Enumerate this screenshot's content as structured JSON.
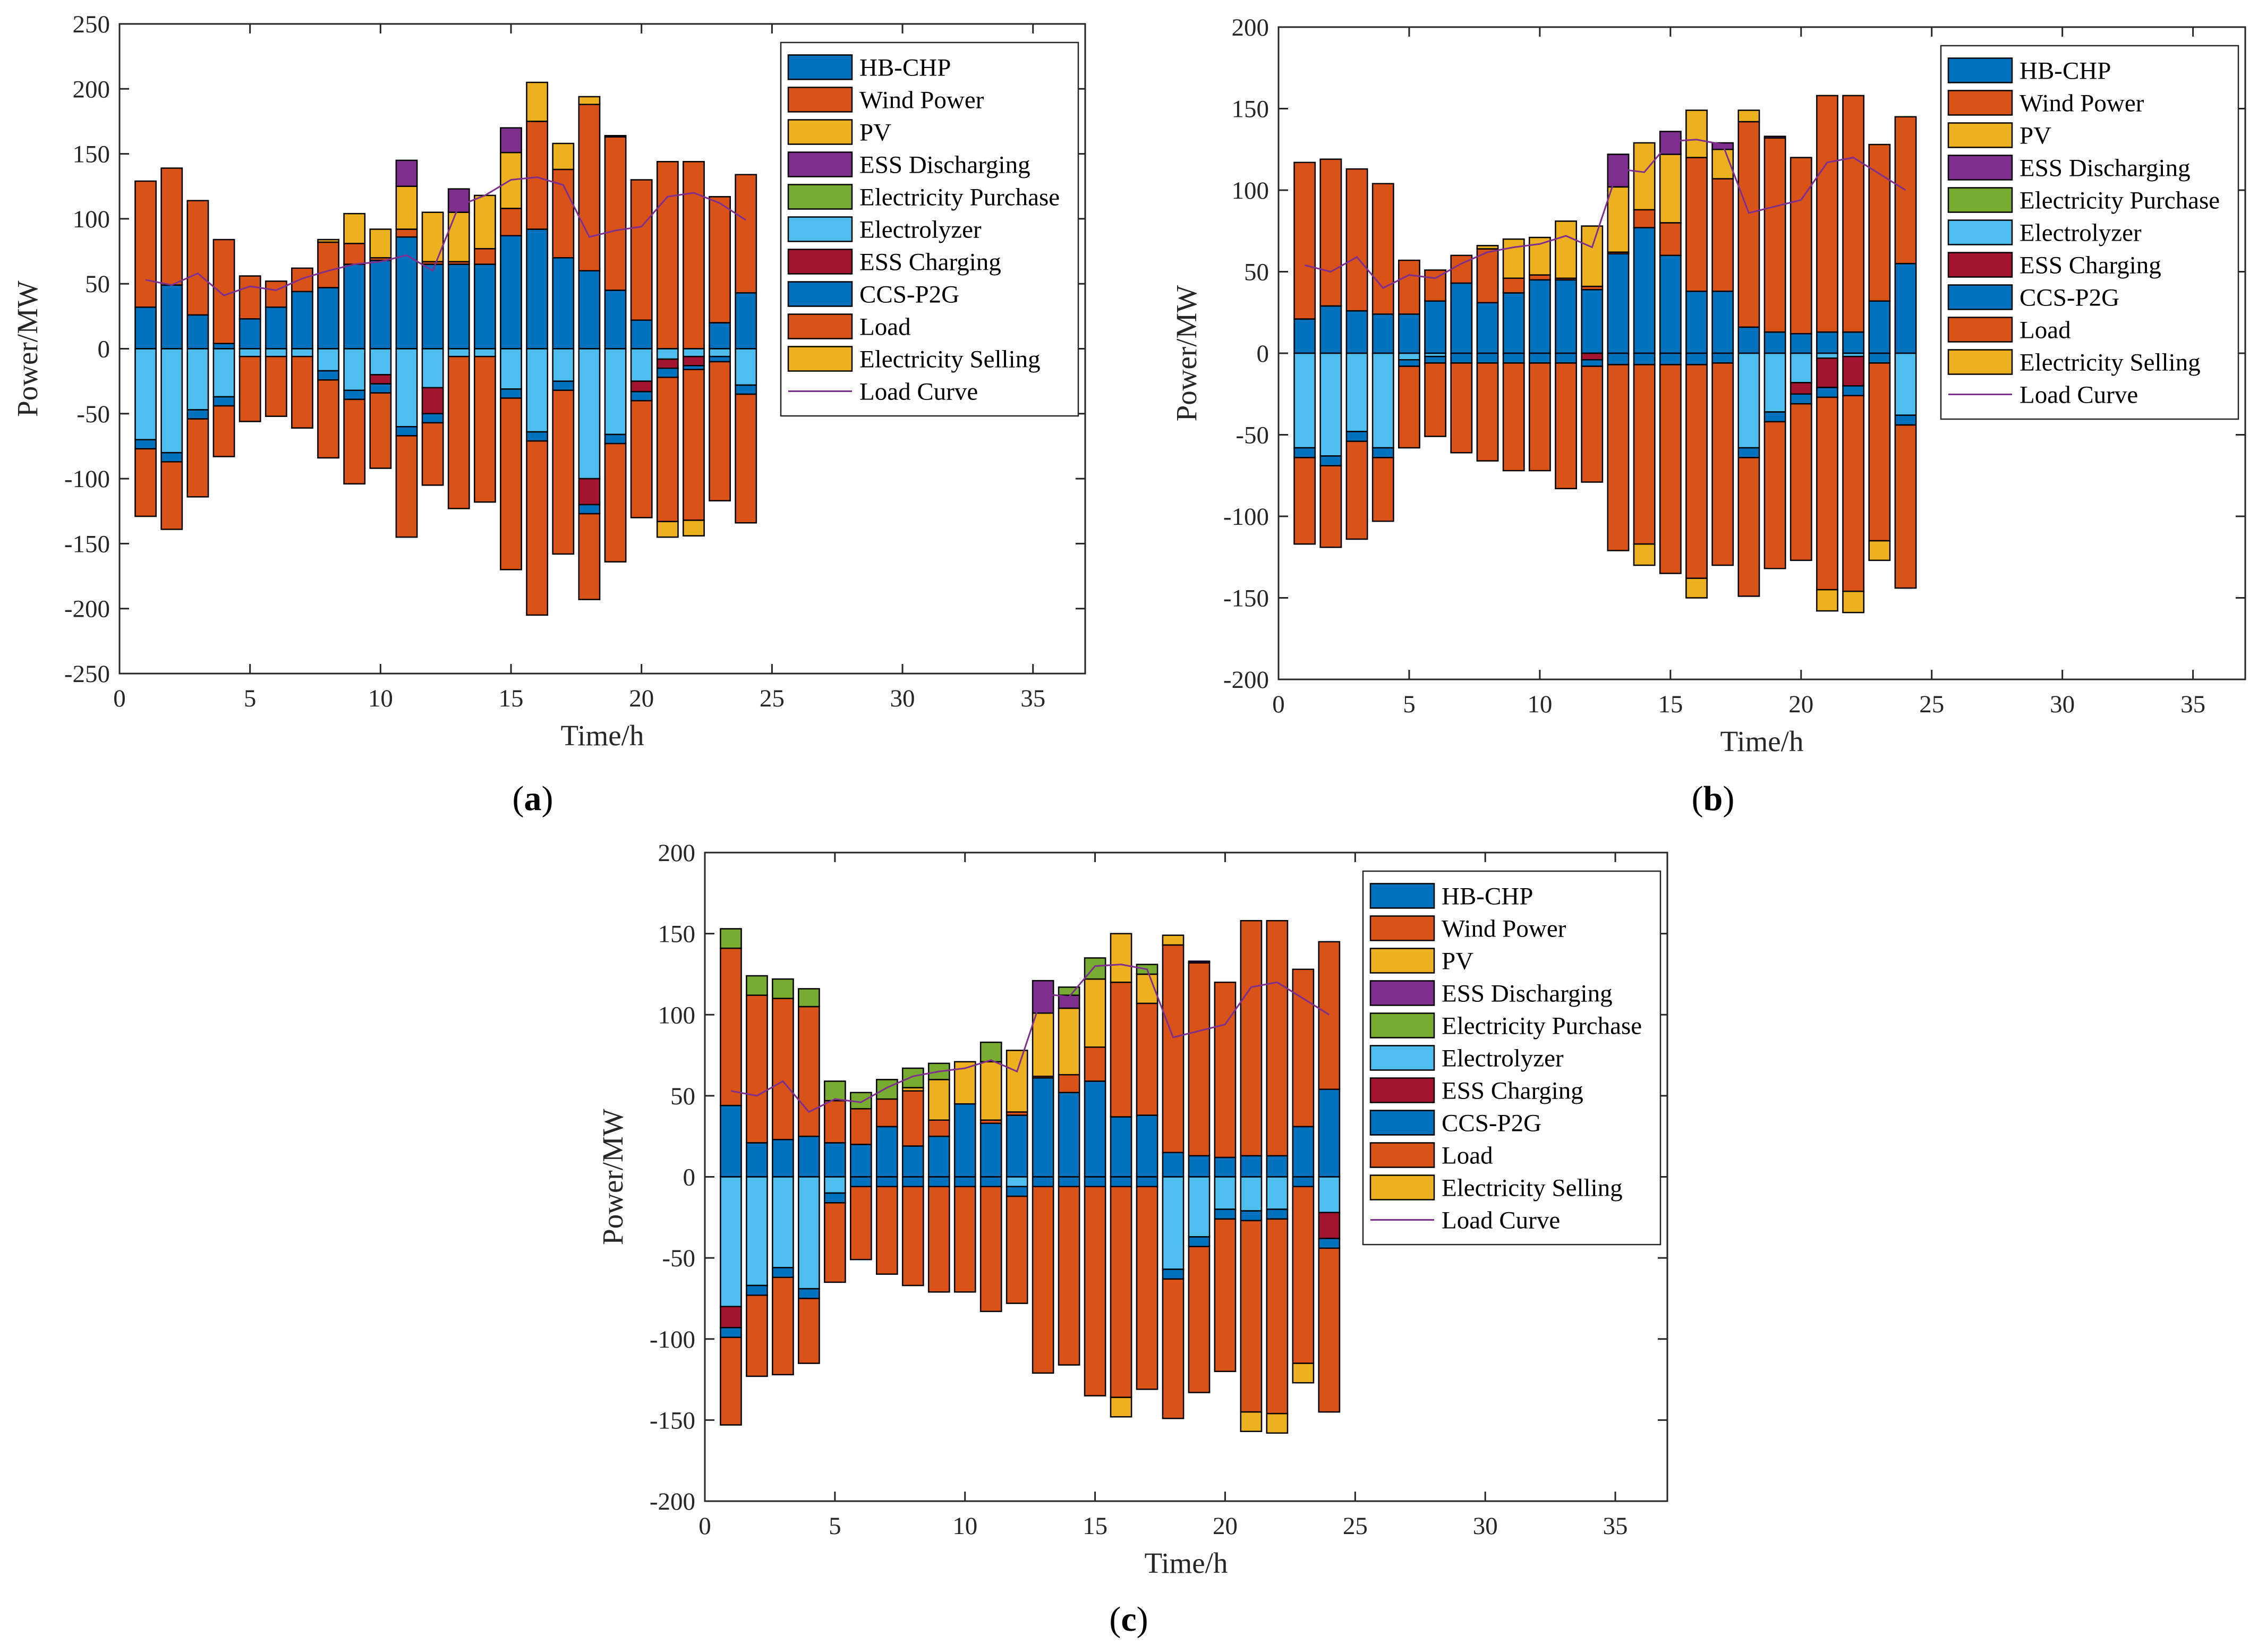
{
  "figure": {
    "panel_labels": [
      {
        "open": "(",
        "letter": "a",
        "close": ")"
      },
      {
        "open": "(",
        "letter": "b",
        "close": ")"
      },
      {
        "open": "(",
        "letter": "c",
        "close": ")"
      }
    ]
  },
  "chart_data": [
    {
      "type": "bar",
      "title": "",
      "xlabel": "Time/h",
      "ylabel": "Power/MW",
      "xlim": [
        0,
        37
      ],
      "ylim": [
        -250,
        250
      ],
      "xticks": [
        0,
        5,
        10,
        15,
        20,
        25,
        30,
        35
      ],
      "yticks": [
        -250,
        -200,
        -150,
        -100,
        -50,
        0,
        50,
        100,
        150,
        200,
        250
      ],
      "legend_position": "top-right",
      "legend": [
        "HB-CHP",
        "Wind Power",
        "PV",
        "ESS Discharging",
        "Electricity Purchase",
        "Electrolyzer",
        "ESS Charging",
        "CCS-P2G",
        "Load",
        "Electricity Selling",
        "Load Curve"
      ],
      "colors": {
        "HB-CHP": "#0072BD",
        "Wind Power": "#D95319",
        "PV": "#EDB120",
        "ESS Discharging": "#7E2F8E",
        "Electricity Purchase": "#77AC30",
        "Electrolyzer": "#4DBEEE",
        "ESS Charging": "#A2142F",
        "CCS-P2G": "#0072BD",
        "Load": "#D95319",
        "Electricity Selling": "#EDB120",
        "Load Curve": "#7E2F8E"
      },
      "x": [
        1,
        2,
        3,
        4,
        5,
        6,
        7,
        8,
        9,
        10,
        11,
        12,
        13,
        14,
        15,
        16,
        17,
        18,
        19,
        20,
        21,
        22,
        23,
        24
      ],
      "positive_series": [
        {
          "name": "HB-CHP",
          "values": [
            32,
            49,
            26,
            4,
            23,
            32,
            44,
            47,
            65,
            68,
            86,
            65,
            65,
            65,
            87,
            92,
            70,
            60,
            45,
            22,
            0,
            0,
            20,
            43
          ]
        },
        {
          "name": "Wind Power",
          "values": [
            97,
            90,
            88,
            80,
            33,
            20,
            18,
            35,
            16,
            2,
            6,
            2,
            2,
            12,
            21,
            83,
            68,
            128,
            118,
            108,
            144,
            144,
            97,
            91
          ]
        },
        {
          "name": "PV",
          "values": [
            0,
            0,
            0,
            0,
            0,
            0,
            0,
            2,
            23,
            22,
            33,
            38,
            38,
            41,
            43,
            30,
            20,
            6,
            0,
            0,
            0,
            0,
            0,
            0
          ]
        },
        {
          "name": "ESS Discharging",
          "values": [
            0,
            0,
            0,
            0,
            0,
            0,
            0,
            0,
            0,
            0,
            20,
            0,
            18,
            0,
            19,
            0,
            0,
            0,
            1,
            0,
            0,
            0,
            0,
            0
          ]
        },
        {
          "name": "Electricity Purchase",
          "values": [
            0,
            0,
            0,
            0,
            0,
            0,
            0,
            0,
            0,
            0,
            0,
            0,
            0,
            0,
            0,
            0,
            0,
            0,
            0,
            0,
            0,
            0,
            0,
            0
          ]
        }
      ],
      "negative_series": [
        {
          "name": "Electrolyzer",
          "values": [
            70,
            80,
            47,
            37,
            6,
            6,
            6,
            17,
            32,
            20,
            60,
            30,
            6,
            6,
            31,
            64,
            25,
            100,
            66,
            25,
            8,
            6,
            6,
            28
          ]
        },
        {
          "name": "ESS Charging",
          "values": [
            0,
            0,
            0,
            0,
            0,
            0,
            0,
            0,
            0,
            7,
            0,
            20,
            0,
            0,
            0,
            0,
            0,
            20,
            0,
            8,
            7,
            7,
            0,
            0
          ]
        },
        {
          "name": "CCS-P2G",
          "values": [
            7,
            7,
            7,
            7,
            0,
            0,
            0,
            7,
            7,
            7,
            7,
            7,
            0,
            0,
            7,
            7,
            7,
            7,
            7,
            7,
            7,
            3,
            4,
            7
          ]
        },
        {
          "name": "Load",
          "values": [
            52,
            52,
            60,
            39,
            50,
            46,
            55,
            60,
            65,
            58,
            78,
            48,
            117,
            112,
            132,
            134,
            126,
            66,
            91,
            90,
            111,
            116,
            107,
            99
          ]
        },
        {
          "name": "Electricity Selling",
          "values": [
            0,
            0,
            0,
            0,
            0,
            0,
            0,
            0,
            0,
            0,
            0,
            0,
            0,
            0,
            0,
            0,
            0,
            0,
            0,
            0,
            12,
            12,
            0,
            0
          ]
        }
      ],
      "load_curve": [
        53,
        49,
        58,
        41,
        48,
        45,
        54,
        60,
        65,
        67,
        72,
        60,
        110,
        118,
        130,
        132,
        126,
        86,
        91,
        94,
        117,
        120,
        112,
        99
      ]
    },
    {
      "type": "bar",
      "title": "",
      "xlabel": "Time/h",
      "ylabel": "Power/MW",
      "xlim": [
        0,
        37
      ],
      "ylim": [
        -200,
        200
      ],
      "xticks": [
        0,
        5,
        10,
        15,
        20,
        25,
        30,
        35
      ],
      "yticks": [
        -200,
        -150,
        -100,
        -50,
        0,
        50,
        100,
        150,
        200
      ],
      "legend_position": "top-right",
      "legend": [
        "HB-CHP",
        "Wind Power",
        "PV",
        "ESS Discharging",
        "Electricity Purchase",
        "Electrolyzer",
        "ESS Charging",
        "CCS-P2G",
        "Load",
        "Electricity Selling",
        "Load Curve"
      ],
      "colors": {
        "HB-CHP": "#0072BD",
        "Wind Power": "#D95319",
        "PV": "#EDB120",
        "ESS Discharging": "#7E2F8E",
        "Electricity Purchase": "#77AC30",
        "Electrolyzer": "#4DBEEE",
        "ESS Charging": "#A2142F",
        "CCS-P2G": "#0072BD",
        "Load": "#D95319",
        "Electricity Selling": "#EDB120",
        "Load Curve": "#7E2F8E"
      },
      "x": [
        1,
        2,
        3,
        4,
        5,
        6,
        7,
        8,
        9,
        10,
        11,
        12,
        13,
        14,
        15,
        16,
        17,
        18,
        19,
        20,
        21,
        22,
        23,
        24
      ],
      "positive_series": [
        {
          "name": "HB-CHP",
          "values": [
            21,
            29,
            26,
            24,
            24,
            32,
            43,
            31,
            37,
            45,
            45,
            39,
            61,
            77,
            60,
            38,
            38,
            16,
            13,
            12,
            13,
            13,
            32,
            55
          ]
        },
        {
          "name": "Wind Power",
          "values": [
            96,
            90,
            87,
            80,
            33,
            19,
            17,
            33,
            9,
            3,
            1,
            2,
            1,
            11,
            20,
            82,
            69,
            126,
            119,
            108,
            145,
            145,
            96,
            90
          ]
        },
        {
          "name": "PV",
          "values": [
            0,
            0,
            0,
            0,
            0,
            0,
            0,
            2,
            24,
            23,
            35,
            37,
            40,
            41,
            42,
            29,
            18,
            7,
            0,
            0,
            0,
            0,
            0,
            0
          ]
        },
        {
          "name": "ESS Discharging",
          "values": [
            0,
            0,
            0,
            0,
            0,
            0,
            0,
            0,
            0,
            0,
            0,
            0,
            20,
            0,
            14,
            0,
            4,
            0,
            1,
            0,
            0,
            0,
            0,
            0
          ]
        },
        {
          "name": "Electricity Purchase",
          "values": [
            0,
            0,
            0,
            0,
            0,
            0,
            0,
            0,
            0,
            0,
            0,
            0,
            0,
            0,
            0,
            0,
            0,
            0,
            0,
            0,
            0,
            0,
            0,
            0
          ]
        }
      ],
      "negative_series": [
        {
          "name": "Electrolyzer",
          "values": [
            58,
            63,
            48,
            58,
            4,
            2,
            0,
            0,
            0,
            0,
            0,
            0,
            0,
            0,
            0,
            0,
            0,
            58,
            36,
            18,
            3,
            2,
            0,
            38
          ]
        },
        {
          "name": "ESS Charging",
          "values": [
            0,
            0,
            0,
            0,
            0,
            0,
            0,
            0,
            0,
            0,
            0,
            4,
            0,
            0,
            0,
            0,
            0,
            0,
            0,
            7,
            18,
            18,
            0,
            0
          ]
        },
        {
          "name": "CCS-P2G",
          "values": [
            6,
            6,
            6,
            6,
            4,
            4,
            6,
            6,
            6,
            6,
            6,
            4,
            7,
            7,
            7,
            7,
            6,
            6,
            6,
            6,
            6,
            6,
            6,
            6
          ]
        },
        {
          "name": "Load",
          "values": [
            53,
            50,
            60,
            39,
            50,
            45,
            55,
            60,
            66,
            66,
            77,
            71,
            114,
            110,
            128,
            131,
            124,
            85,
            90,
            96,
            118,
            120,
            109,
            100
          ]
        },
        {
          "name": "Electricity Selling",
          "values": [
            0,
            0,
            0,
            0,
            0,
            0,
            0,
            0,
            0,
            0,
            0,
            0,
            0,
            13,
            0,
            12,
            0,
            0,
            0,
            0,
            13,
            13,
            12,
            0
          ]
        }
      ],
      "load_curve": [
        54,
        50,
        59,
        40,
        48,
        46,
        55,
        62,
        65,
        67,
        72,
        65,
        113,
        111,
        130,
        131,
        128,
        86,
        90,
        94,
        117,
        120,
        110,
        100
      ]
    },
    {
      "type": "bar",
      "title": "",
      "xlabel": "Time/h",
      "ylabel": "Power/MW",
      "xlim": [
        0,
        37
      ],
      "ylim": [
        -200,
        200
      ],
      "xticks": [
        0,
        5,
        10,
        15,
        20,
        25,
        30,
        35
      ],
      "yticks": [
        -200,
        -150,
        -100,
        -50,
        0,
        50,
        100,
        150,
        200
      ],
      "legend_position": "top-right",
      "legend": [
        "HB-CHP",
        "Wind Power",
        "PV",
        "ESS Discharging",
        "Electricity Purchase",
        "Electrolyzer",
        "ESS Charging",
        "CCS-P2G",
        "Load",
        "Electricity Selling",
        "Load Curve"
      ],
      "colors": {
        "HB-CHP": "#0072BD",
        "Wind Power": "#D95319",
        "PV": "#EDB120",
        "ESS Discharging": "#7E2F8E",
        "Electricity Purchase": "#77AC30",
        "Electrolyzer": "#4DBEEE",
        "ESS Charging": "#A2142F",
        "CCS-P2G": "#0072BD",
        "Load": "#D95319",
        "Electricity Selling": "#EDB120",
        "Load Curve": "#7E2F8E"
      },
      "x": [
        1,
        2,
        3,
        4,
        5,
        6,
        7,
        8,
        9,
        10,
        11,
        12,
        13,
        14,
        15,
        16,
        17,
        18,
        19,
        20,
        21,
        22,
        23,
        24
      ],
      "positive_series": [
        {
          "name": "HB-CHP",
          "values": [
            44,
            21,
            23,
            25,
            21,
            20,
            31,
            19,
            25,
            45,
            33,
            38,
            61,
            52,
            59,
            37,
            38,
            15,
            13,
            12,
            13,
            13,
            31,
            54
          ]
        },
        {
          "name": "Wind Power",
          "values": [
            97,
            91,
            87,
            80,
            26,
            22,
            17,
            34,
            10,
            0,
            2,
            2,
            1,
            11,
            21,
            83,
            69,
            128,
            119,
            108,
            145,
            145,
            97,
            91
          ]
        },
        {
          "name": "PV",
          "values": [
            0,
            0,
            0,
            0,
            0,
            0,
            0,
            2,
            25,
            26,
            36,
            38,
            39,
            41,
            42,
            30,
            18,
            6,
            0,
            0,
            0,
            0,
            0,
            0
          ]
        },
        {
          "name": "ESS Discharging",
          "values": [
            0,
            0,
            0,
            0,
            0,
            0,
            0,
            0,
            0,
            0,
            0,
            0,
            20,
            8,
            0,
            0,
            0,
            0,
            1,
            0,
            0,
            0,
            0,
            0
          ]
        },
        {
          "name": "Electricity Purchase",
          "values": [
            12,
            12,
            12,
            11,
            12,
            10,
            12,
            12,
            10,
            0,
            12,
            0,
            0,
            5,
            13,
            0,
            6,
            0,
            0,
            0,
            0,
            0,
            0,
            0
          ]
        }
      ],
      "negative_series": [
        {
          "name": "Electrolyzer",
          "values": [
            80,
            67,
            56,
            69,
            10,
            0,
            0,
            0,
            0,
            0,
            0,
            6,
            0,
            0,
            0,
            0,
            0,
            57,
            37,
            20,
            21,
            20,
            0,
            22
          ]
        },
        {
          "name": "ESS Charging",
          "values": [
            13,
            0,
            0,
            0,
            0,
            0,
            0,
            0,
            0,
            0,
            0,
            0,
            0,
            0,
            0,
            0,
            0,
            0,
            0,
            0,
            0,
            0,
            0,
            16
          ]
        },
        {
          "name": "CCS-P2G",
          "values": [
            6,
            6,
            6,
            6,
            6,
            6,
            6,
            6,
            6,
            6,
            6,
            6,
            6,
            6,
            6,
            6,
            6,
            6,
            6,
            6,
            6,
            6,
            6,
            6
          ]
        },
        {
          "name": "Load",
          "values": [
            54,
            50,
            60,
            40,
            49,
            45,
            54,
            61,
            65,
            65,
            77,
            66,
            115,
            110,
            129,
            130,
            125,
            86,
            90,
            94,
            118,
            120,
            109,
            101
          ]
        },
        {
          "name": "Electricity Selling",
          "values": [
            0,
            0,
            0,
            0,
            0,
            0,
            0,
            0,
            0,
            0,
            0,
            0,
            0,
            0,
            0,
            12,
            0,
            0,
            0,
            0,
            12,
            12,
            12,
            0
          ]
        }
      ],
      "load_curve": [
        53,
        50,
        59,
        40,
        48,
        46,
        55,
        62,
        65,
        67,
        72,
        65,
        113,
        111,
        130,
        131,
        128,
        86,
        90,
        94,
        117,
        120,
        110,
        100
      ]
    }
  ]
}
